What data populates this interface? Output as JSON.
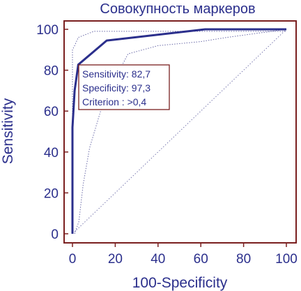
{
  "chart_data": {
    "type": "line",
    "title": "Совокупность маркеров",
    "xlabel": "100-Specificity",
    "ylabel": "Sensitivity",
    "xlim": [
      0,
      100
    ],
    "ylim": [
      0,
      100
    ],
    "x_ticks": [
      "0",
      "20",
      "40",
      "60",
      "80",
      "100"
    ],
    "y_ticks": [
      "0",
      "20",
      "40",
      "60",
      "80",
      "100"
    ],
    "grid": false,
    "colors": {
      "roc": "#2b2f8c",
      "text": "#2b2f8c",
      "frame": "#7a1f1f",
      "confidence": "#6a6aa8",
      "diagonal": "#7a7ab0"
    },
    "series": [
      {
        "role": "roc",
        "x": [
          0,
          0,
          1,
          2.7,
          16,
          62,
          100
        ],
        "y": [
          0,
          52,
          70,
          82.7,
          94.5,
          100,
          100
        ]
      },
      {
        "role": "upper-bound",
        "x": [
          0,
          0,
          1,
          2.7,
          10,
          28,
          62,
          100
        ],
        "y": [
          0,
          90,
          92,
          96,
          99,
          99,
          99,
          99
        ]
      },
      {
        "role": "lower-bound",
        "x": [
          1,
          3,
          5,
          8,
          14,
          20,
          26,
          40,
          60,
          72,
          100
        ],
        "y": [
          0,
          6,
          24,
          42,
          63,
          76,
          88,
          92,
          94,
          96,
          100
        ]
      },
      {
        "role": "diagonal",
        "x": [
          0,
          100
        ],
        "y": [
          0,
          100
        ]
      }
    ],
    "annotation": {
      "lines": [
        "Sensitivity: 82,7",
        "Specificity: 97,3",
        "Criterion : >0,4"
      ]
    }
  }
}
